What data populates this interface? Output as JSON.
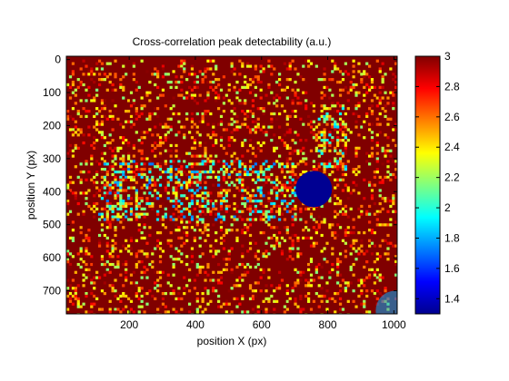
{
  "chart_data": {
    "type": "heatmap",
    "title": "Cross-correlation peak detectability (a.u.)",
    "xlabel": "position X (px)",
    "ylabel": "position Y (px)",
    "xlim": [
      10,
      1010
    ],
    "ylim": [
      770,
      -10
    ],
    "y_axis_reversed": true,
    "x_ticks": [
      200,
      400,
      600,
      800,
      1000
    ],
    "x_tick_labels": [
      "200",
      "400",
      "600",
      "800",
      "1000"
    ],
    "y_ticks": [
      0,
      100,
      200,
      300,
      400,
      500,
      600,
      700
    ],
    "y_tick_labels": [
      "0",
      "100",
      "200",
      "300",
      "400",
      "500",
      "600",
      "700"
    ],
    "colormap": "jet",
    "color_range": [
      1.3,
      3.0
    ],
    "colorbar_ticks": [
      1.4,
      1.6,
      1.8,
      2,
      2.2,
      2.4,
      2.6,
      2.8,
      3
    ],
    "colorbar_tick_labels": [
      "1.4",
      "1.6",
      "1.8",
      "2",
      "2.2",
      "2.4",
      "2.6",
      "2.8",
      "3"
    ],
    "grid": false,
    "cell_size": 8,
    "background_value": 3.0,
    "noise_fraction": 0.2,
    "features": [
      {
        "kind": "disk",
        "center": [
          758,
          392
        ],
        "radius": 55,
        "value": 1.33
      },
      {
        "kind": "dense-noise-band",
        "x_range": [
          100,
          700
        ],
        "y_range": [
          300,
          480
        ],
        "min_value": 1.7
      },
      {
        "kind": "dense-noise-band",
        "x_range": [
          770,
          850
        ],
        "y_range": [
          130,
          330
        ],
        "min_value": 1.8
      },
      {
        "kind": "low-corner",
        "center": [
          1005,
          760
        ],
        "radius": 60,
        "value": 1.8
      }
    ]
  }
}
